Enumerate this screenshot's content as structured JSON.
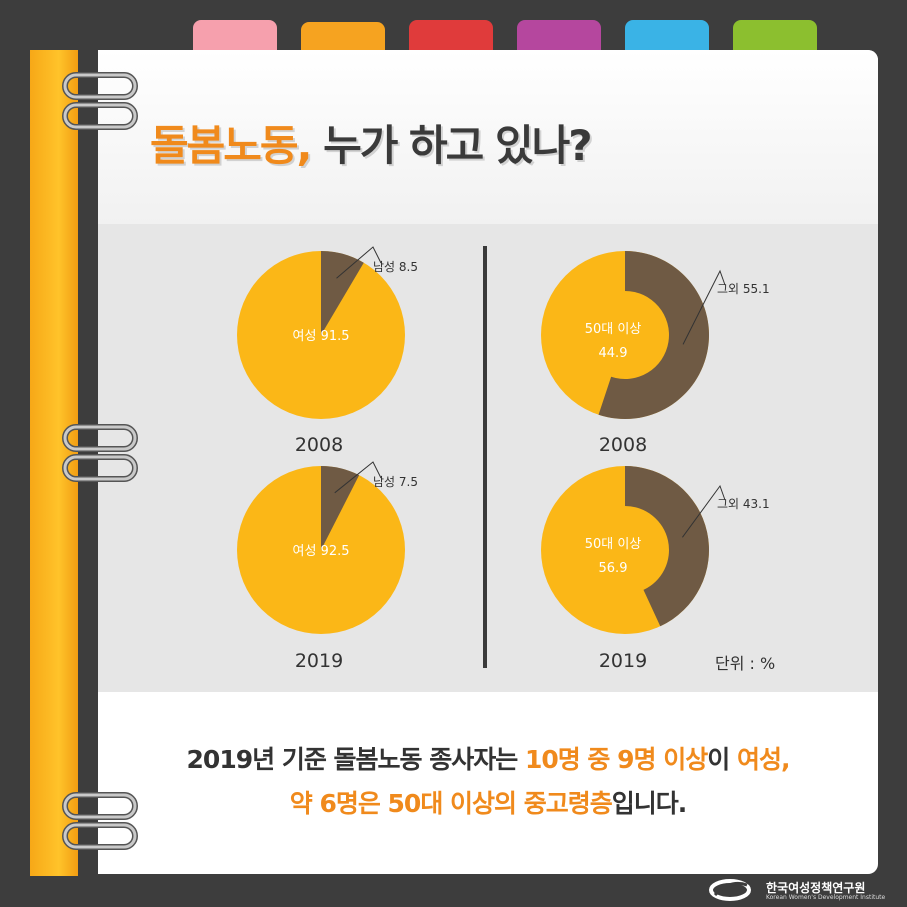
{
  "title": {
    "highlight": "돌봄노동,",
    "rest": " 누가 하고 있나?"
  },
  "tabs": {
    "colors": [
      "#f6a0ad",
      "#f6a320",
      "#e03b3b",
      "#b5479e",
      "#3ab3e6",
      "#8cbf2f"
    ]
  },
  "chart_data": [
    {
      "type": "pie",
      "panel": "gender",
      "year": "2008",
      "slices": [
        {
          "label": "여성",
          "value": 91.5,
          "color": "#fbb717"
        },
        {
          "label": "남성",
          "value": 8.5,
          "color": "#6f5a44"
        }
      ]
    },
    {
      "type": "pie",
      "panel": "gender",
      "year": "2019",
      "slices": [
        {
          "label": "여성",
          "value": 92.5,
          "color": "#fbb717"
        },
        {
          "label": "남성",
          "value": 7.5,
          "color": "#6f5a44"
        }
      ]
    },
    {
      "type": "pie",
      "panel": "age",
      "year": "2008",
      "slices": [
        {
          "label": "50대 이상",
          "value": 44.9,
          "color": "#fbb717"
        },
        {
          "label": "그외",
          "value": 55.1,
          "color": "#6f5a44"
        }
      ]
    },
    {
      "type": "pie",
      "panel": "age",
      "year": "2019",
      "slices": [
        {
          "label": "50대 이상",
          "value": 56.9,
          "color": "#fbb717"
        },
        {
          "label": "그외",
          "value": 43.1,
          "color": "#6f5a44"
        }
      ]
    }
  ],
  "unit_label": "단위 : %",
  "caption": {
    "line1": [
      {
        "t": "2019년 기준 돌봄노동 종사자는 ",
        "hl": false
      },
      {
        "t": "10명 중 9명 이상",
        "hl": true
      },
      {
        "t": "이 ",
        "hl": false
      },
      {
        "t": "여성,",
        "hl": true
      }
    ],
    "line2": [
      {
        "t": "약 6명은 50대 이상의 중고령층",
        "hl": true
      },
      {
        "t": "입니다.",
        "hl": false
      }
    ]
  },
  "logo": {
    "name": "한국여성정책연구원",
    "sub": "Korean Women's Development Institute"
  }
}
